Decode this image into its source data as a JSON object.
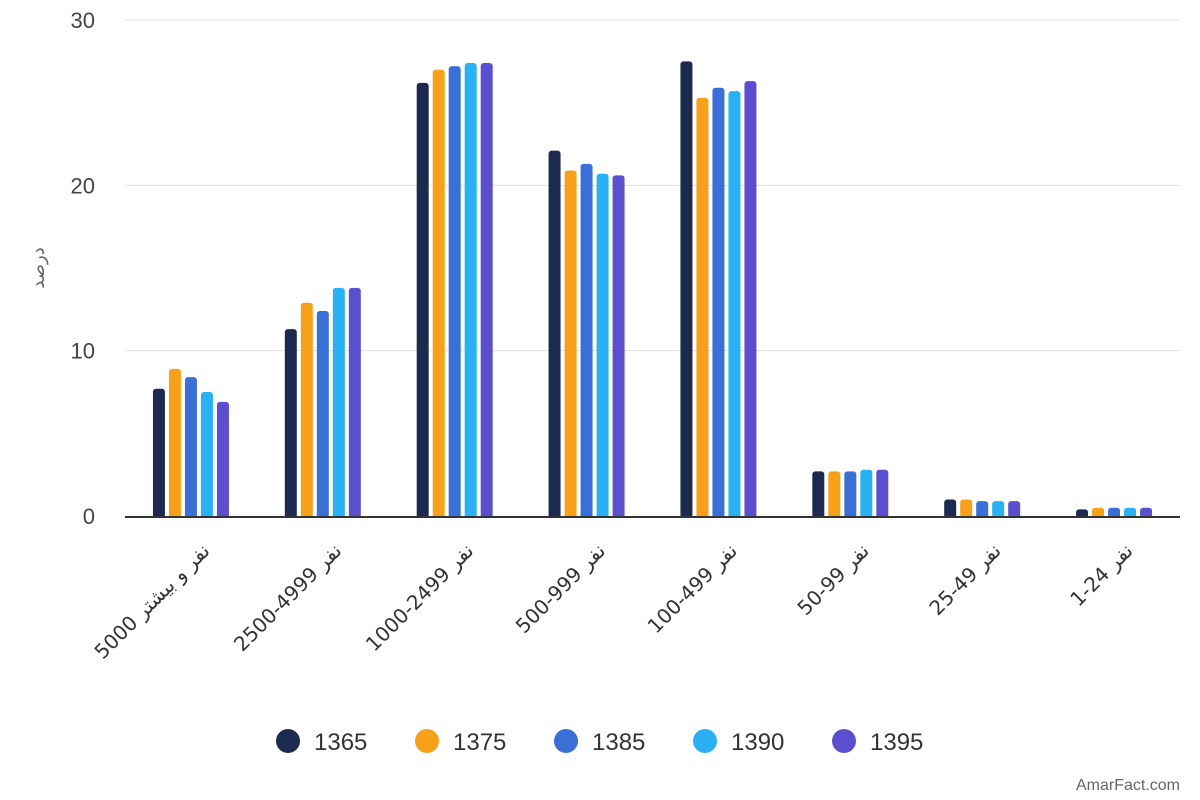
{
  "chart_data": {
    "type": "bar",
    "ylabel": "درصد",
    "ylim": [
      0,
      30
    ],
    "yticks": [
      0,
      10,
      20,
      30
    ],
    "grid": true,
    "legend_position": "bottom",
    "categories": [
      "5000 نفر و بیشتر",
      "2500-4999 نفر",
      "1000-2499 نفر",
      "500-999 نفر",
      "100-499 نفر",
      "50-99 نفر",
      "25-49 نفر",
      "1-24 نفر"
    ],
    "series": [
      {
        "name": "1365",
        "color": "#1b2a4e",
        "values": [
          7.7,
          11.3,
          26.2,
          22.1,
          27.5,
          2.7,
          1.0,
          0.4
        ]
      },
      {
        "name": "1375",
        "color": "#f7a11a",
        "values": [
          8.9,
          12.9,
          27.0,
          20.9,
          25.3,
          2.7,
          1.0,
          0.5
        ]
      },
      {
        "name": "1385",
        "color": "#3a6fd8",
        "values": [
          8.4,
          12.4,
          27.2,
          21.3,
          25.9,
          2.7,
          0.9,
          0.5
        ]
      },
      {
        "name": "1390",
        "color": "#29b1f4",
        "values": [
          7.5,
          13.8,
          27.4,
          20.7,
          25.7,
          2.8,
          0.9,
          0.5
        ]
      },
      {
        "name": "1395",
        "color": "#5b4fcf",
        "values": [
          6.9,
          13.8,
          27.4,
          20.6,
          26.3,
          2.8,
          0.9,
          0.5
        ]
      }
    ]
  },
  "credit": "AmarFact.com"
}
